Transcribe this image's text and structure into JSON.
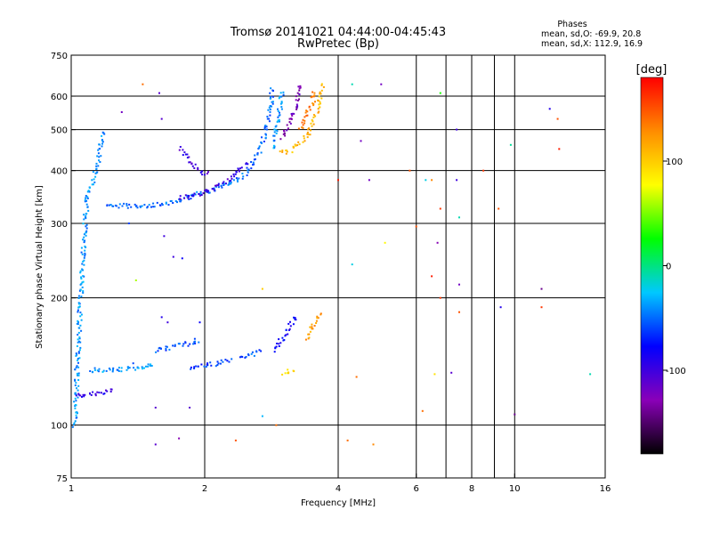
{
  "header": {
    "title_line1": "Tromsø 20141021 04:44:00-04:45:43",
    "title_line2": "RwPretec (Bp)"
  },
  "stats": {
    "label": "Phases",
    "line_o": "mean, sd,O: -69.9, 20.8",
    "line_x": "mean, sd,X: 112.9, 16.9"
  },
  "colorbar": {
    "unit_label": "[deg]",
    "range": [
      -180,
      180
    ],
    "tick_labels": [
      "100",
      "0",
      "-100"
    ],
    "tick_values": [
      100,
      0,
      -100
    ],
    "colors": [
      "#000000",
      "#8a00b8",
      "#0000ff",
      "#00c8ff",
      "#00ff00",
      "#ffff00",
      "#ff8c00",
      "#ff0000"
    ]
  },
  "chart_data": {
    "type": "scatter",
    "title": "Tromsø 20141021 04:44:00-04:45:43",
    "subtitle": "RwPretec (Bp)",
    "xlabel": "Frequency [MHz]",
    "ylabel": "Stationary phase Virtual Height [km]",
    "xscale": "log",
    "yscale": "log",
    "xlim": [
      1,
      16
    ],
    "ylim": [
      75,
      750
    ],
    "xticks": [
      1,
      2,
      4,
      6,
      8,
      10,
      16
    ],
    "yticks": [
      75,
      100,
      200,
      300,
      400,
      500,
      600,
      750
    ],
    "xgrid": [
      2,
      4,
      6,
      7,
      8,
      9,
      10
    ],
    "ygrid": [
      100,
      200,
      300,
      400,
      500,
      600
    ],
    "colorscale": "phase [deg], -180 (black) to 180 (red)",
    "traces": [
      {
        "name": "",
        "phase": -40,
        "points": [
          [
            1.02,
            100
          ],
          [
            1.03,
            130
          ],
          [
            1.04,
            160
          ],
          [
            1.05,
            200
          ],
          [
            1.06,
            240
          ],
          [
            1.07,
            280
          ],
          [
            1.08,
            320
          ],
          [
            1.09,
            350
          ],
          [
            1.12,
            380
          ],
          [
            1.15,
            420
          ],
          [
            1.17,
            470
          ],
          [
            1.18,
            500
          ]
        ]
      },
      {
        "name": "",
        "phase": -95,
        "points": [
          [
            1.02,
            118
          ],
          [
            1.06,
            118
          ],
          [
            1.1,
            118
          ],
          [
            1.15,
            119
          ],
          [
            1.2,
            120
          ],
          [
            1.25,
            121
          ]
        ]
      },
      {
        "name": "",
        "phase": -40,
        "points": [
          [
            1.1,
            135
          ],
          [
            1.25,
            135
          ],
          [
            1.4,
            136
          ],
          [
            1.55,
            140
          ]
        ]
      },
      {
        "name": "",
        "phase": -55,
        "points": [
          [
            1.55,
            150
          ],
          [
            1.65,
            152
          ],
          [
            1.75,
            154
          ],
          [
            1.85,
            156
          ],
          [
            1.95,
            158
          ]
        ]
      },
      {
        "name": "",
        "phase": -60,
        "points": [
          [
            1.85,
            137
          ],
          [
            2.0,
            138
          ],
          [
            2.15,
            140
          ],
          [
            2.3,
            142
          ]
        ]
      },
      {
        "name": "",
        "phase": -55,
        "points": [
          [
            2.4,
            145
          ],
          [
            2.55,
            147
          ],
          [
            2.7,
            150
          ]
        ]
      },
      {
        "name": "",
        "phase": -80,
        "points": [
          [
            2.85,
            150
          ],
          [
            2.95,
            157
          ],
          [
            3.05,
            165
          ],
          [
            3.15,
            175
          ],
          [
            3.25,
            182
          ]
        ]
      },
      {
        "name": "",
        "phase": 90,
        "points": [
          [
            3.0,
            133
          ],
          [
            3.1,
            134
          ],
          [
            3.2,
            135
          ]
        ]
      },
      {
        "name": "",
        "phase": 120,
        "points": [
          [
            3.4,
            160
          ],
          [
            3.55,
            175
          ],
          [
            3.65,
            185
          ]
        ]
      },
      {
        "name": "",
        "phase": -50,
        "points": [
          [
            1.2,
            330
          ],
          [
            1.4,
            330
          ],
          [
            1.6,
            332
          ],
          [
            1.75,
            340
          ],
          [
            1.9,
            350
          ],
          [
            2.1,
            360
          ],
          [
            2.3,
            375
          ],
          [
            2.45,
            390
          ],
          [
            2.55,
            410
          ],
          [
            2.65,
            440
          ],
          [
            2.72,
            480
          ],
          [
            2.78,
            530
          ],
          [
            2.82,
            580
          ],
          [
            2.85,
            630
          ]
        ]
      },
      {
        "name": "",
        "phase": -100,
        "points": [
          [
            1.75,
            345
          ],
          [
            1.95,
            352
          ],
          [
            2.1,
            365
          ],
          [
            2.25,
            380
          ],
          [
            2.4,
            400
          ],
          [
            2.5,
            420
          ]
        ]
      },
      {
        "name": "",
        "phase": -100,
        "points": [
          [
            1.75,
            450
          ],
          [
            1.85,
            420
          ],
          [
            1.95,
            400
          ],
          [
            2.05,
            390
          ]
        ]
      },
      {
        "name": "",
        "phase": -40,
        "points": [
          [
            2.85,
            450
          ],
          [
            2.9,
            500
          ],
          [
            2.95,
            560
          ],
          [
            3.0,
            620
          ]
        ]
      },
      {
        "name": "",
        "phase": -125,
        "points": [
          [
            3.0,
            480
          ],
          [
            3.1,
            520
          ],
          [
            3.2,
            560
          ],
          [
            3.25,
            600
          ],
          [
            3.3,
            640
          ]
        ]
      },
      {
        "name": "",
        "phase": 110,
        "points": [
          [
            2.95,
            440
          ],
          [
            3.1,
            445
          ],
          [
            3.25,
            460
          ],
          [
            3.4,
            480
          ],
          [
            3.5,
            520
          ],
          [
            3.6,
            560
          ],
          [
            3.65,
            600
          ],
          [
            3.7,
            640
          ]
        ]
      },
      {
        "name": "",
        "phase": 135,
        "points": [
          [
            3.3,
            500
          ],
          [
            3.4,
            540
          ],
          [
            3.5,
            580
          ],
          [
            3.55,
            620
          ]
        ]
      }
    ],
    "scatter": [
      {
        "x": 1.45,
        "y": 640,
        "phase": 140
      },
      {
        "x": 1.58,
        "y": 610,
        "phase": -110
      },
      {
        "x": 1.3,
        "y": 550,
        "phase": -120
      },
      {
        "x": 1.6,
        "y": 530,
        "phase": -110
      },
      {
        "x": 4.3,
        "y": 640,
        "phase": -10
      },
      {
        "x": 5.0,
        "y": 640,
        "phase": -120
      },
      {
        "x": 6.8,
        "y": 610,
        "phase": 30
      },
      {
        "x": 7.4,
        "y": 500,
        "phase": -100
      },
      {
        "x": 9.8,
        "y": 460,
        "phase": -5
      },
      {
        "x": 12.0,
        "y": 560,
        "phase": -90
      },
      {
        "x": 12.5,
        "y": 530,
        "phase": 150
      },
      {
        "x": 12.6,
        "y": 450,
        "phase": 170
      },
      {
        "x": 4.5,
        "y": 470,
        "phase": -120
      },
      {
        "x": 4.0,
        "y": 380,
        "phase": 170
      },
      {
        "x": 4.7,
        "y": 380,
        "phase": -120
      },
      {
        "x": 5.8,
        "y": 400,
        "phase": 150
      },
      {
        "x": 6.3,
        "y": 380,
        "phase": -20
      },
      {
        "x": 6.5,
        "y": 380,
        "phase": 130
      },
      {
        "x": 7.4,
        "y": 380,
        "phase": -100
      },
      {
        "x": 8.5,
        "y": 400,
        "phase": 160
      },
      {
        "x": 9.2,
        "y": 325,
        "phase": 150
      },
      {
        "x": 6.8,
        "y": 325,
        "phase": 160
      },
      {
        "x": 7.5,
        "y": 310,
        "phase": -10
      },
      {
        "x": 6.0,
        "y": 295,
        "phase": 150
      },
      {
        "x": 6.7,
        "y": 270,
        "phase": -130
      },
      {
        "x": 4.3,
        "y": 240,
        "phase": -20
      },
      {
        "x": 5.1,
        "y": 270,
        "phase": 80
      },
      {
        "x": 6.5,
        "y": 225,
        "phase": 170
      },
      {
        "x": 7.5,
        "y": 215,
        "phase": -120
      },
      {
        "x": 11.5,
        "y": 210,
        "phase": -140
      },
      {
        "x": 2.7,
        "y": 210,
        "phase": 100
      },
      {
        "x": 6.8,
        "y": 200,
        "phase": 160
      },
      {
        "x": 7.5,
        "y": 185,
        "phase": 150
      },
      {
        "x": 9.3,
        "y": 190,
        "phase": -90
      },
      {
        "x": 11.5,
        "y": 190,
        "phase": 160
      },
      {
        "x": 4.4,
        "y": 130,
        "phase": 140
      },
      {
        "x": 6.6,
        "y": 132,
        "phase": 90
      },
      {
        "x": 7.2,
        "y": 133,
        "phase": -110
      },
      {
        "x": 14.8,
        "y": 132,
        "phase": -10
      },
      {
        "x": 6.2,
        "y": 108,
        "phase": 140
      },
      {
        "x": 10.0,
        "y": 106,
        "phase": -140
      },
      {
        "x": 2.7,
        "y": 105,
        "phase": -30
      },
      {
        "x": 2.9,
        "y": 100,
        "phase": 140
      },
      {
        "x": 4.2,
        "y": 92,
        "phase": 140
      },
      {
        "x": 4.8,
        "y": 90,
        "phase": 130
      },
      {
        "x": 2.35,
        "y": 92,
        "phase": 150
      },
      {
        "x": 1.55,
        "y": 90,
        "phase": -110
      },
      {
        "x": 1.75,
        "y": 93,
        "phase": -130
      },
      {
        "x": 1.35,
        "y": 300,
        "phase": -60
      },
      {
        "x": 1.62,
        "y": 280,
        "phase": -100
      },
      {
        "x": 1.7,
        "y": 250,
        "phase": -100
      },
      {
        "x": 1.78,
        "y": 248,
        "phase": -80
      },
      {
        "x": 1.4,
        "y": 220,
        "phase": 60
      },
      {
        "x": 1.38,
        "y": 140,
        "phase": -60
      },
      {
        "x": 1.6,
        "y": 180,
        "phase": -90
      },
      {
        "x": 1.65,
        "y": 175,
        "phase": -100
      },
      {
        "x": 1.9,
        "y": 160,
        "phase": -60
      },
      {
        "x": 1.95,
        "y": 175,
        "phase": -80
      },
      {
        "x": 1.85,
        "y": 110,
        "phase": -110
      },
      {
        "x": 1.55,
        "y": 110,
        "phase": -110
      }
    ]
  }
}
